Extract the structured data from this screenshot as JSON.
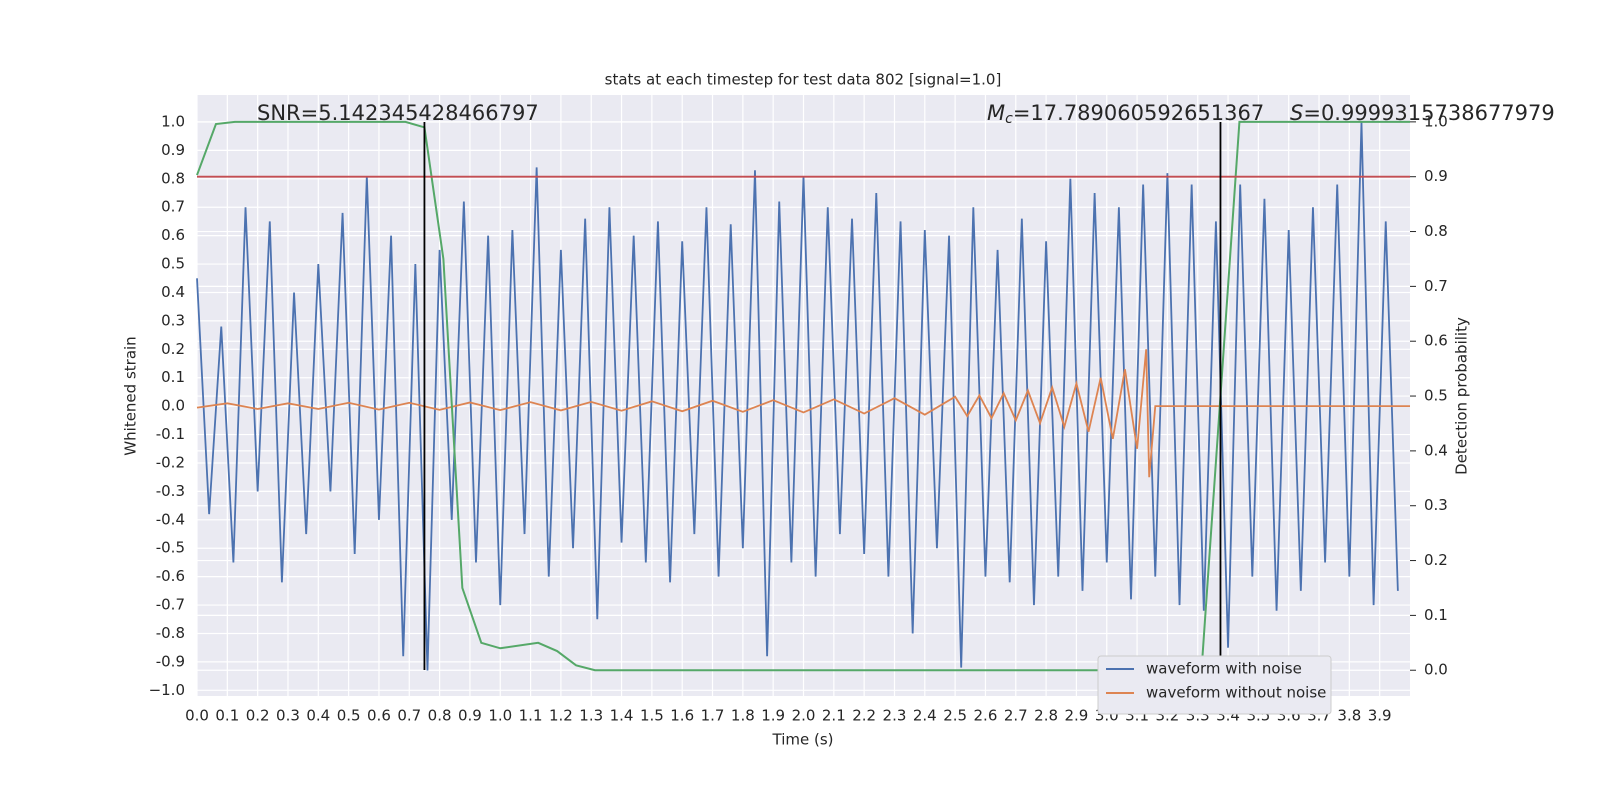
{
  "chart_data": {
    "type": "line",
    "title": "stats at each timestep for test data 802 [signal=1.0]",
    "x_label": "Time (s)",
    "y_label": "Whitened strain",
    "y2_label": "Detection probability",
    "annotations": [
      {
        "text": "SNR=5.142345428466797"
      },
      {
        "symbol": "M",
        "subscript": "c",
        "text": "=17.789060592651367"
      },
      {
        "symbol": "S",
        "text": "=0.9999315738677979"
      }
    ],
    "xlim": [
      0,
      4.0
    ],
    "ylim": [
      -1.02,
      1.095
    ],
    "y2lim": [
      -0.047,
      1.049
    ],
    "grid": true,
    "legend": "lower right",
    "xticks": [
      {
        "value": 0,
        "label": "0.0"
      },
      0.1,
      0.2,
      0.3,
      0.4,
      0.5,
      0.6,
      0.7,
      0.8,
      0.9,
      {
        "value": 1,
        "label": "1.0"
      },
      1.1,
      1.2,
      1.3,
      1.4,
      1.5,
      1.6,
      1.7,
      1.8,
      1.9,
      {
        "value": 2,
        "label": "2.0"
      },
      2.1,
      2.2,
      2.3,
      2.4,
      2.5,
      2.6,
      2.7,
      2.8,
      2.9,
      {
        "value": 3,
        "label": "3.0"
      },
      3.1,
      3.2,
      3.3,
      3.4,
      3.5,
      3.6,
      3.7,
      3.8,
      3.9
    ],
    "yticks": [
      {
        "value": -1,
        "label": "−1.0"
      },
      -0.9,
      -0.8,
      -0.7,
      -0.6,
      -0.5,
      -0.4,
      -0.3,
      -0.2,
      -0.1,
      {
        "value": 0,
        "label": "0.0"
      },
      0.1,
      0.2,
      0.3,
      0.4,
      0.5,
      0.6,
      0.7,
      0.8,
      0.9,
      {
        "value": 1,
        "label": "1.0"
      }
    ],
    "y2ticks": [
      {
        "value": 0,
        "label": "0.0"
      },
      0.1,
      0.2,
      0.3,
      0.4,
      0.5,
      0.6,
      0.7,
      0.8,
      0.9,
      {
        "value": 1,
        "label": "1.0"
      }
    ],
    "threshold": {
      "value": 0.9,
      "axis": "y2",
      "color": "#c44e52"
    },
    "vlines": {
      "values": [
        0.75,
        3.375
      ],
      "color": "#000000"
    },
    "series": [
      {
        "name": "waveform with noise",
        "color": "#4c72b0",
        "x": [
          0,
          0.04,
          0.08,
          0.12,
          0.16,
          0.2,
          0.24,
          0.28,
          0.32,
          0.36,
          0.4,
          0.44,
          0.48,
          0.52,
          0.56,
          0.6,
          0.64,
          0.68,
          0.72,
          0.76,
          0.8,
          0.84,
          0.88,
          0.92,
          0.96,
          1.0,
          1.04,
          1.08,
          1.12,
          1.16,
          1.2,
          1.24,
          1.28,
          1.32,
          1.36,
          1.4,
          1.44,
          1.48,
          1.52,
          1.56,
          1.6,
          1.64,
          1.68,
          1.72,
          1.76,
          1.8,
          1.84,
          1.88,
          1.92,
          1.96,
          2.0,
          2.04,
          2.08,
          2.12,
          2.16,
          2.2,
          2.24,
          2.28,
          2.32,
          2.36,
          2.4,
          2.44,
          2.48,
          2.52,
          2.56,
          2.6,
          2.64,
          2.68,
          2.72,
          2.76,
          2.8,
          2.84,
          2.88,
          2.92,
          2.96,
          3.0,
          3.04,
          3.08,
          3.12,
          3.16,
          3.2,
          3.24,
          3.28,
          3.32,
          3.36,
          3.4,
          3.44,
          3.48,
          3.52,
          3.56,
          3.6,
          3.64,
          3.68,
          3.72,
          3.76,
          3.8,
          3.84,
          3.88,
          3.92,
          3.96
        ],
        "values": [
          0.45,
          -0.38,
          0.28,
          -0.55,
          0.7,
          -0.3,
          0.65,
          -0.62,
          0.4,
          -0.45,
          0.5,
          -0.3,
          0.68,
          -0.52,
          0.81,
          -0.4,
          0.6,
          -0.88,
          0.5,
          -0.93,
          0.55,
          -0.4,
          0.72,
          -0.55,
          0.6,
          -0.7,
          0.62,
          -0.45,
          0.84,
          -0.6,
          0.55,
          -0.5,
          0.66,
          -0.75,
          0.7,
          -0.48,
          0.6,
          -0.55,
          0.65,
          -0.62,
          0.58,
          -0.45,
          0.7,
          -0.6,
          0.64,
          -0.5,
          0.83,
          -0.88,
          0.72,
          -0.55,
          0.81,
          -0.6,
          0.7,
          -0.45,
          0.66,
          -0.52,
          0.75,
          -0.6,
          0.65,
          -0.8,
          0.62,
          -0.5,
          0.6,
          -0.92,
          0.7,
          -0.6,
          0.55,
          -0.62,
          0.66,
          -0.7,
          0.58,
          -0.6,
          0.8,
          -0.65,
          0.75,
          -0.55,
          0.7,
          -0.68,
          0.78,
          -0.6,
          0.82,
          -0.7,
          0.78,
          -0.72,
          0.65,
          -0.85,
          0.78,
          -0.6,
          0.73,
          -0.72,
          0.62,
          -0.65,
          0.7,
          -0.55,
          0.78,
          -0.6,
          1.0,
          -0.7,
          0.65,
          -0.65
        ]
      },
      {
        "name": "waveform without noise",
        "color": "#dd8452",
        "x": [
          0,
          0.1,
          0.2,
          0.3,
          0.4,
          0.5,
          0.6,
          0.7,
          0.8,
          0.9,
          1.0,
          1.1,
          1.2,
          1.3,
          1.4,
          1.5,
          1.6,
          1.7,
          1.8,
          1.9,
          2.0,
          2.1,
          2.2,
          2.3,
          2.4,
          2.5,
          2.54,
          2.58,
          2.62,
          2.66,
          2.7,
          2.74,
          2.78,
          2.82,
          2.86,
          2.9,
          2.94,
          2.98,
          3.02,
          3.06,
          3.1,
          3.13,
          3.14,
          3.16,
          4.0
        ],
        "values": [
          -0.005,
          0.01,
          -0.01,
          0.01,
          -0.01,
          0.012,
          -0.012,
          0.012,
          -0.013,
          0.013,
          -0.014,
          0.014,
          -0.015,
          0.015,
          -0.016,
          0.017,
          -0.018,
          0.019,
          -0.02,
          0.021,
          -0.022,
          0.024,
          -0.026,
          0.028,
          -0.03,
          0.033,
          -0.035,
          0.038,
          -0.042,
          0.046,
          -0.05,
          0.055,
          -0.06,
          0.066,
          -0.073,
          0.08,
          -0.09,
          0.1,
          -0.115,
          0.13,
          -0.15,
          0.2,
          -0.25,
          0,
          0
        ]
      },
      {
        "color": "#55a868",
        "axis": "y2",
        "x": [
          0,
          0.0625,
          0.125,
          0.6875,
          0.75,
          0.8125,
          0.875,
          0.9375,
          1.0,
          1.125,
          1.1875,
          1.25,
          1.3125,
          3.3125,
          3.375,
          3.4375,
          4.0
        ],
        "values": [
          0.903,
          0.996,
          1.0,
          1.0,
          0.99,
          0.75,
          0.15,
          0.05,
          0.04,
          0.05,
          0.035,
          0.009,
          0.0,
          0.0,
          0.5,
          1.0,
          1.0
        ]
      }
    ]
  }
}
